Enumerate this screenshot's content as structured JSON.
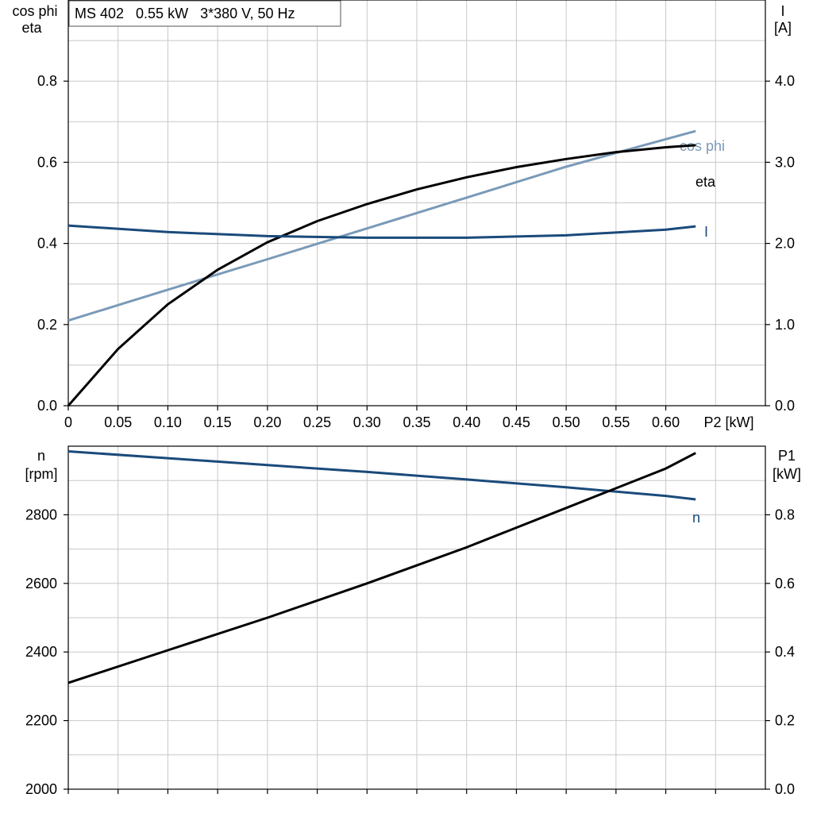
{
  "title_box": "MS 402   0.55 kW   3*380 V, 50 Hz",
  "colors": {
    "cos_phi": "#7a9ab8",
    "eta": "#000000",
    "current": "#1a4a7a",
    "speed": "#1a4a7a",
    "p1": "#000000",
    "grid": "#c8c8c8"
  },
  "chart_data": [
    {
      "type": "line",
      "axes": {
        "left_label_line1": "cos phi",
        "left_label_line2": "eta",
        "right_label_line1": "I",
        "right_label_line2": "[A]",
        "x_label": "P2 [kW]",
        "xlim": [
          0,
          0.7
        ],
        "x_ticks": [
          "0",
          "0.05",
          "0.10",
          "0.15",
          "0.20",
          "0.25",
          "0.30",
          "0.35",
          "0.40",
          "0.45",
          "0.50",
          "0.55",
          "0.60"
        ],
        "ylim_left": [
          0,
          1.0
        ],
        "left_ticks": [
          "0.0",
          "0.2",
          "0.4",
          "0.6",
          "0.8"
        ],
        "ylim_right": [
          0,
          5.0
        ],
        "right_ticks": [
          "0.0",
          "1.0",
          "2.0",
          "3.0",
          "4.0"
        ],
        "grid": true
      },
      "series": [
        {
          "name": "cos phi",
          "axis": "left",
          "x": [
            0,
            0.1,
            0.2,
            0.3,
            0.4,
            0.5,
            0.6,
            0.63
          ],
          "y": [
            0.21,
            0.286,
            0.361,
            0.437,
            0.513,
            0.589,
            0.657,
            0.677
          ]
        },
        {
          "name": "eta",
          "axis": "left",
          "x": [
            0,
            0.05,
            0.1,
            0.15,
            0.2,
            0.25,
            0.3,
            0.35,
            0.4,
            0.45,
            0.5,
            0.55,
            0.6,
            0.63
          ],
          "y": [
            0,
            0.14,
            0.25,
            0.335,
            0.403,
            0.455,
            0.497,
            0.533,
            0.563,
            0.588,
            0.608,
            0.625,
            0.637,
            0.642
          ]
        },
        {
          "name": "I",
          "axis": "right",
          "x": [
            0,
            0.1,
            0.2,
            0.3,
            0.4,
            0.5,
            0.6,
            0.63
          ],
          "y": [
            2.22,
            2.14,
            2.09,
            2.07,
            2.07,
            2.1,
            2.17,
            2.21
          ]
        }
      ]
    },
    {
      "type": "line",
      "axes": {
        "left_label_line1": "n",
        "left_label_line2": "[rpm]",
        "right_label_line1": "P1",
        "right_label_line2": "[kW]",
        "xlim": [
          0,
          0.7
        ],
        "ylim_left": [
          2000,
          3000
        ],
        "left_ticks": [
          "2000",
          "2200",
          "2400",
          "2600",
          "2800"
        ],
        "ylim_right": [
          0,
          1.0
        ],
        "right_ticks": [
          "0.0",
          "0.2",
          "0.4",
          "0.6",
          "0.8"
        ],
        "grid": true
      },
      "series": [
        {
          "name": "n",
          "axis": "left",
          "x": [
            0,
            0.1,
            0.2,
            0.3,
            0.4,
            0.5,
            0.6,
            0.63
          ],
          "y": [
            2985,
            2965,
            2945,
            2925,
            2903,
            2880,
            2855,
            2845
          ]
        },
        {
          "name": "",
          "axis": "right",
          "x": [
            0,
            0.1,
            0.2,
            0.3,
            0.4,
            0.5,
            0.6,
            0.63
          ],
          "y": [
            0.31,
            0.405,
            0.5,
            0.6,
            0.705,
            0.82,
            0.935,
            0.98
          ]
        }
      ]
    }
  ]
}
